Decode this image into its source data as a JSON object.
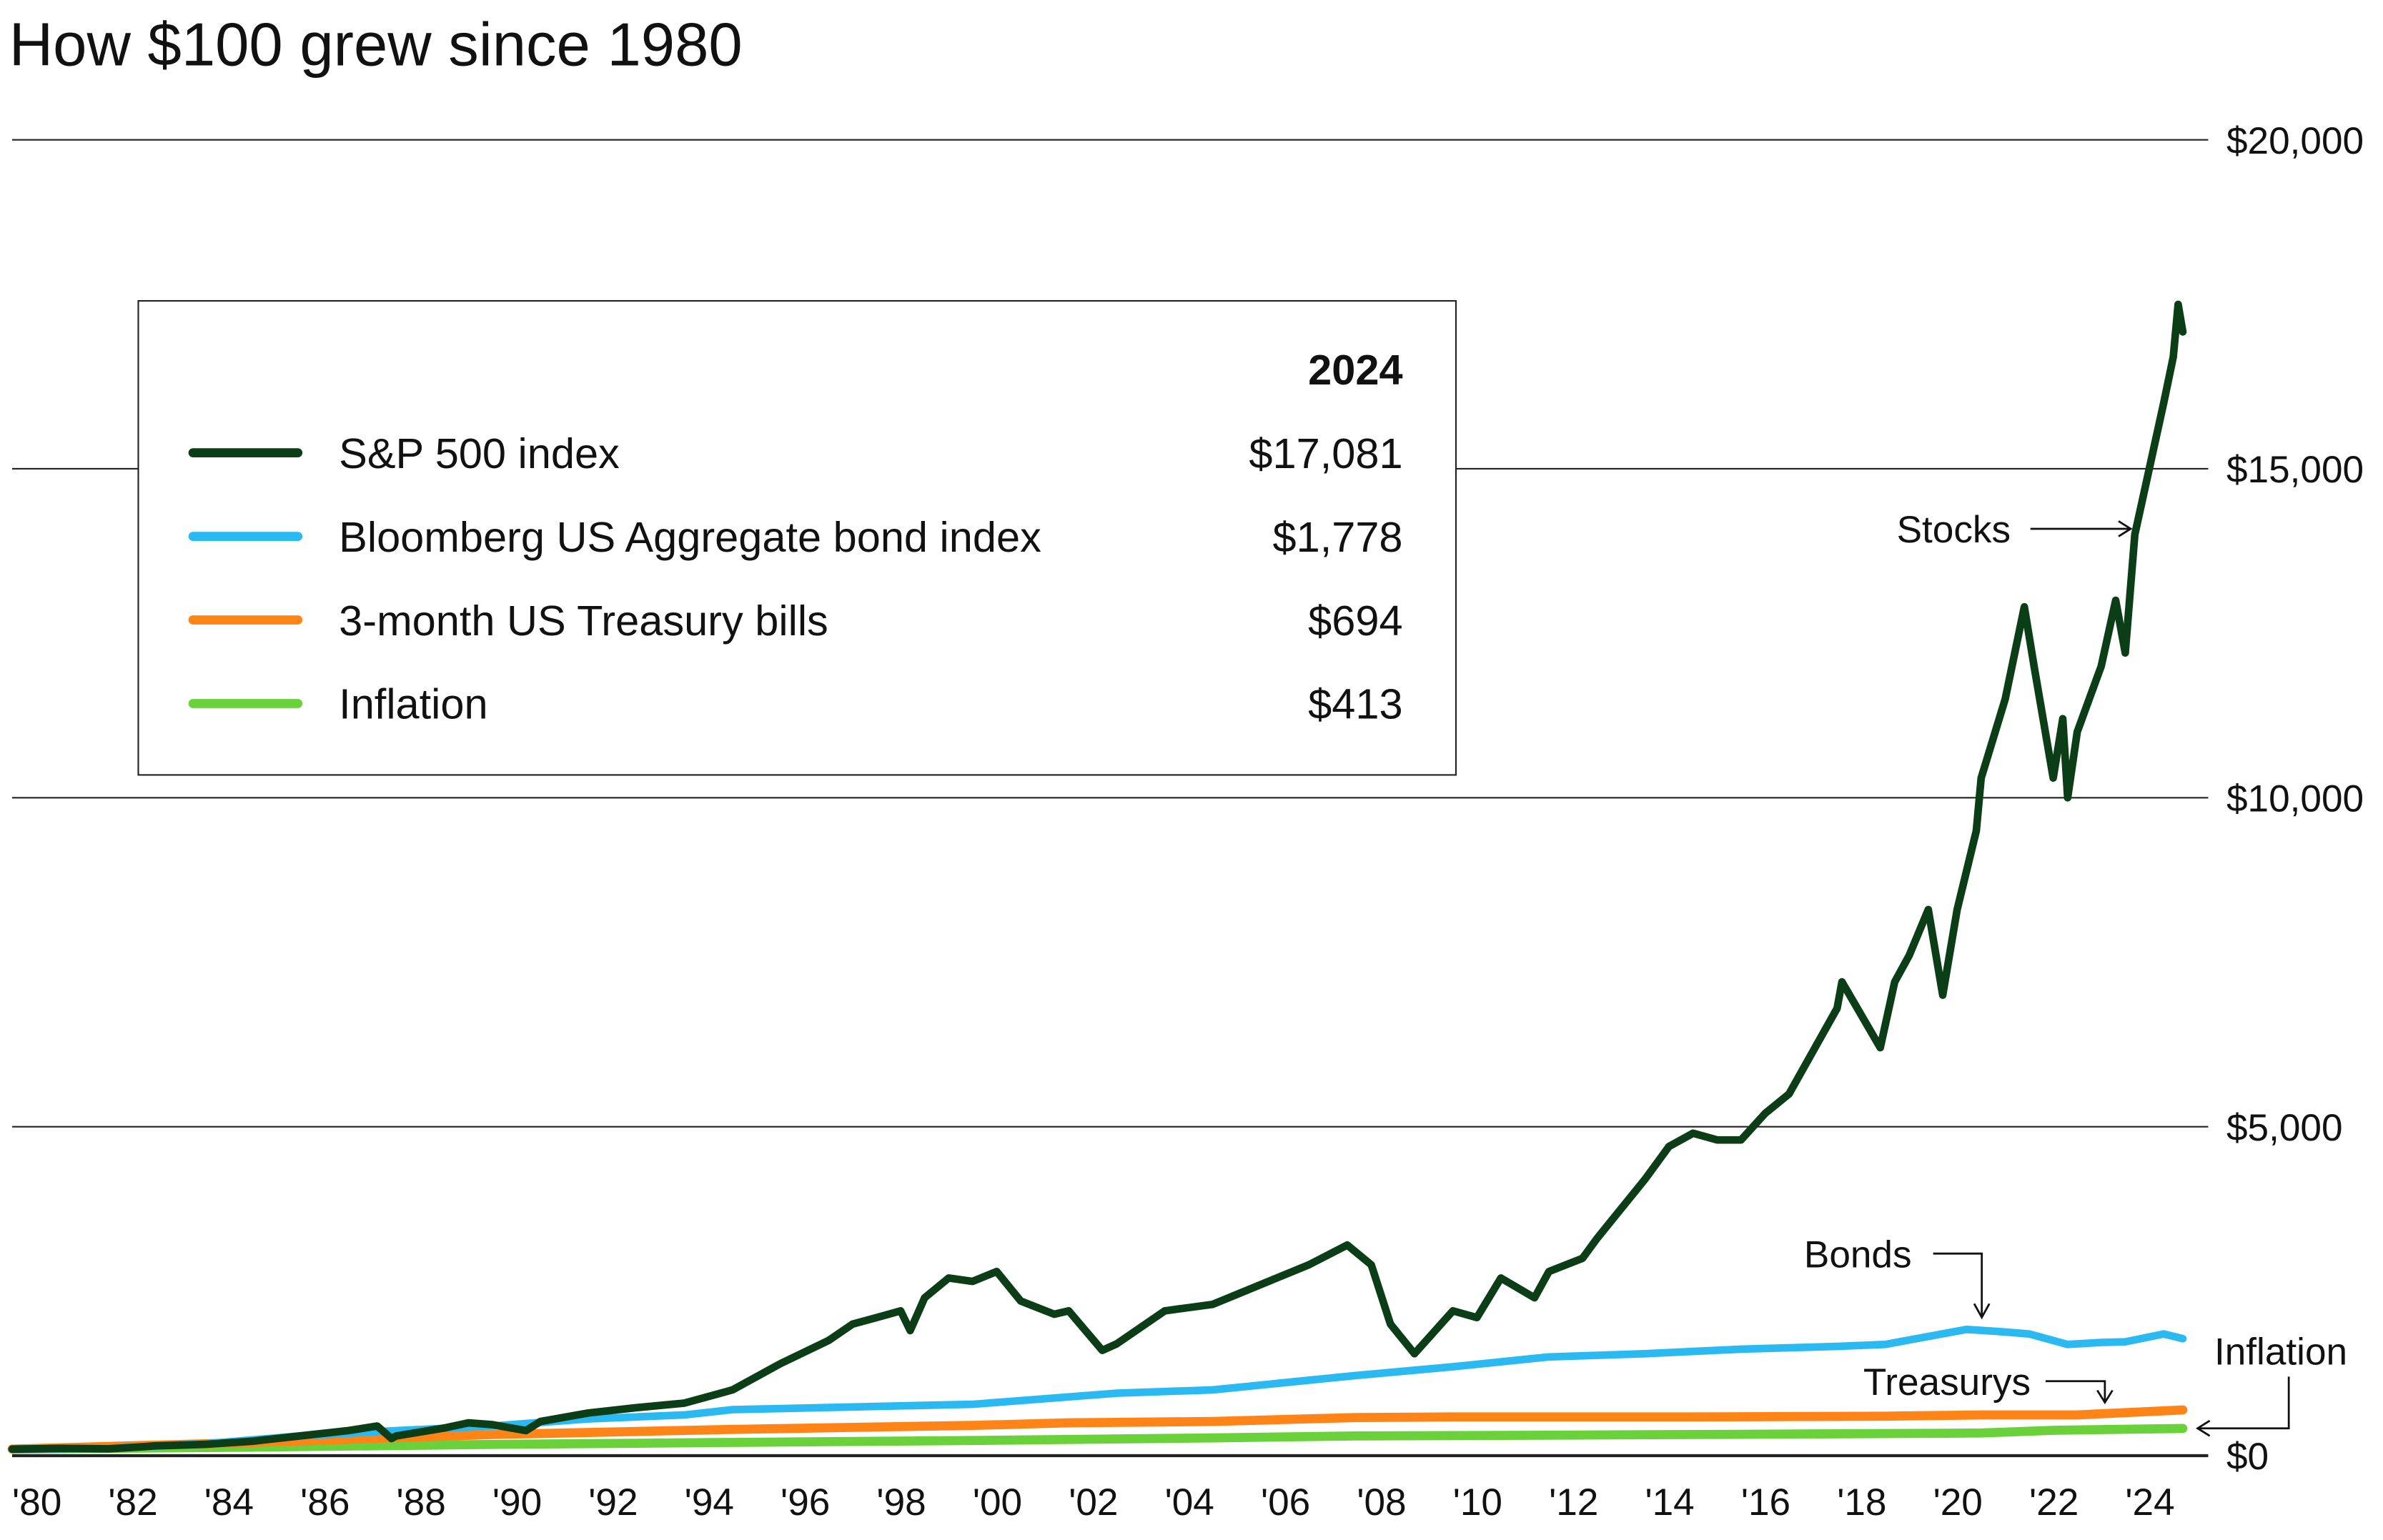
{
  "chart_data": {
    "type": "line",
    "title": "How $100 grew since 1980",
    "xlabel": "",
    "ylabel": "",
    "xlim": [
      1980,
      2025.3
    ],
    "ylim": [
      0,
      20000
    ],
    "grid": true,
    "x_ticks": [
      "'80",
      "'82",
      "'84",
      "'86",
      "'88",
      "'90",
      "'92",
      "'94",
      "'96",
      "'98",
      "'00",
      "'02",
      "'04",
      "'06",
      "'08",
      "'10",
      "'12",
      "'14",
      "'16",
      "'18",
      "'20",
      "'22",
      "'24"
    ],
    "y_ticks": [
      {
        "value": 0,
        "label": "$0"
      },
      {
        "value": 5000,
        "label": "$5,000"
      },
      {
        "value": 10000,
        "label": "$10,000"
      },
      {
        "value": 15000,
        "label": "$15,000"
      },
      {
        "value": 20000,
        "label": "$20,000"
      }
    ],
    "legend": {
      "placement": "top-left",
      "header": "2024",
      "entries": [
        {
          "label": "S&P 500 index",
          "value": "$17,081"
        },
        {
          "label": "Bloomberg US Aggregate bond index",
          "value": "$1,778"
        },
        {
          "label": "3-month US Treasury bills",
          "value": "$694"
        },
        {
          "label": "Inflation",
          "value": "$413"
        }
      ]
    },
    "annotations": {
      "stocks": "Stocks",
      "bonds": "Bonds",
      "treasurys": "Treasurys",
      "inflation": "Inflation"
    },
    "series": [
      {
        "name": "S&P 500 index",
        "color": "#0b3d17",
        "x": [
          1980,
          1981,
          1982,
          1982.6,
          1983,
          1984,
          1985,
          1986,
          1987,
          1987.6,
          1987.9,
          1988,
          1989,
          1989.5,
          1990,
          1990.7,
          1991,
          1992,
          1993,
          1994,
          1995,
          1996,
          1997,
          1997.5,
          1998,
          1998.5,
          1998.7,
          1999,
          1999.5,
          2000,
          2000.5,
          2001,
          2001.7,
          2002,
          2002.7,
          2003,
          2004,
          2005,
          2006,
          2007,
          2007.8,
          2008.3,
          2008.7,
          2009.2,
          2010,
          2010.5,
          2011,
          2011.7,
          2012,
          2012.7,
          2013,
          2014,
          2014.5,
          2015,
          2015.5,
          2016,
          2016.5,
          2017,
          2018,
          2018.1,
          2018.9,
          2019.2,
          2019.5,
          2019.9,
          2020.2,
          2020.5,
          2020.9,
          2021,
          2021.5,
          2021.9,
          2022.1,
          2022.5,
          2022.7,
          2022.8,
          2023,
          2023.5,
          2023.8,
          2024,
          2024.2,
          2024.5,
          2024.8,
          2025,
          2025.1,
          2025.2
        ],
        "y": [
          100,
          110,
          105,
          130,
          150,
          170,
          220,
          300,
          380,
          450,
          260,
          300,
          420,
          500,
          470,
          380,
          520,
          650,
          730,
          800,
          1000,
          1400,
          1750,
          2000,
          2100,
          2200,
          1900,
          2400,
          2700,
          2650,
          2800,
          2350,
          2150,
          2200,
          1600,
          1700,
          2200,
          2300,
          2600,
          2900,
          3200,
          2900,
          2000,
          1550,
          2200,
          2100,
          2700,
          2400,
          2800,
          3000,
          3300,
          4200,
          4700,
          4900,
          4800,
          4800,
          5200,
          5500,
          6800,
          7200,
          6200,
          7200,
          7600,
          8300,
          7000,
          8300,
          9500,
          10300,
          11500,
          12900,
          12000,
          10300,
          11200,
          10000,
          11000,
          12000,
          13000,
          12200,
          14000,
          15000,
          16000,
          16700,
          17500,
          17081
        ]
      },
      {
        "name": "Bloomberg US Aggregate bond index",
        "color": "#2bb9f2",
        "x": [
          1980,
          1982,
          1984,
          1986,
          1988,
          1990,
          1992,
          1994,
          1995,
          2000,
          2003,
          2005,
          2008,
          2010,
          2012,
          2014,
          2016,
          2018,
          2019,
          2020.7,
          2021.5,
          2022,
          2022.8,
          2023.5,
          2024,
          2024.8,
          2025.2
        ],
        "y": [
          100,
          110,
          180,
          300,
          380,
          450,
          560,
          620,
          700,
          780,
          950,
          1000,
          1220,
          1350,
          1500,
          1550,
          1620,
          1660,
          1690,
          1920,
          1880,
          1850,
          1690,
          1720,
          1730,
          1850,
          1778
        ]
      },
      {
        "name": "3-month US Treasury bills",
        "color": "#ff8417",
        "x": [
          1980,
          1985,
          1990,
          1995,
          2000,
          2002,
          2005,
          2008,
          2010,
          2015,
          2019,
          2021,
          2023,
          2025.2
        ],
        "y": [
          100,
          200,
          320,
          400,
          460,
          500,
          520,
          580,
          590,
          590,
          600,
          620,
          620,
          694
        ]
      },
      {
        "name": "Inflation",
        "color": "#6bd13a",
        "x": [
          1980,
          1985,
          1990,
          1995,
          2000,
          2005,
          2008,
          2010,
          2015,
          2020,
          2021,
          2022.5,
          2025.2
        ],
        "y": [
          100,
          130,
          170,
          200,
          230,
          270,
          300,
          305,
          320,
          340,
          345,
          385,
          413
        ]
      }
    ]
  }
}
